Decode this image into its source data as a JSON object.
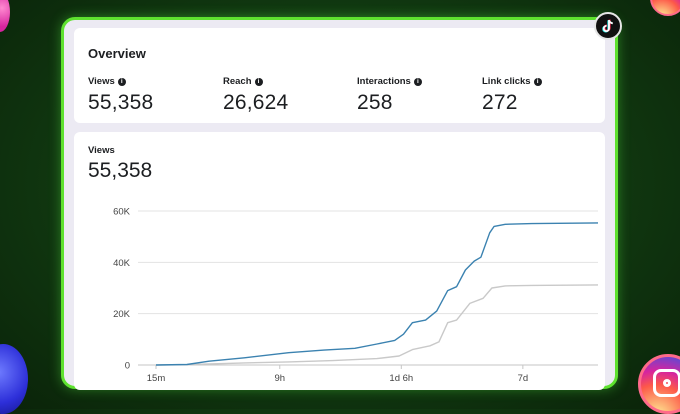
{
  "overview": {
    "title": "Overview",
    "metrics": [
      {
        "label": "Views",
        "value": "55,358"
      },
      {
        "label": "Reach",
        "value": "26,624"
      },
      {
        "label": "Interactions",
        "value": "258"
      },
      {
        "label": "Link clicks",
        "value": "272"
      }
    ]
  },
  "views_card": {
    "label": "Views",
    "value": "55,358"
  },
  "chart_data": {
    "type": "line",
    "x_tick_labels": [
      "15m",
      "9h",
      "1d 6h",
      "7d"
    ],
    "y_tick_labels": [
      "60K",
      "40K",
      "20K",
      "0"
    ],
    "ylim": [
      0,
      60000
    ],
    "grid": true,
    "series": [
      {
        "color": "#3b82b0",
        "points": [
          [
            0,
            0
          ],
          [
            0.07,
            200
          ],
          [
            0.12,
            1500
          ],
          [
            0.2,
            2800
          ],
          [
            0.3,
            4800
          ],
          [
            0.38,
            5800
          ],
          [
            0.45,
            6500
          ],
          [
            0.5,
            8200
          ],
          [
            0.54,
            9600
          ],
          [
            0.56,
            12000
          ],
          [
            0.58,
            16500
          ],
          [
            0.61,
            17500
          ],
          [
            0.635,
            21000
          ],
          [
            0.66,
            29000
          ],
          [
            0.68,
            30500
          ],
          [
            0.7,
            37000
          ],
          [
            0.72,
            40500
          ],
          [
            0.735,
            42000
          ],
          [
            0.755,
            51500
          ],
          [
            0.765,
            54000
          ],
          [
            0.79,
            54800
          ],
          [
            0.85,
            55100
          ],
          [
            1.0,
            55358
          ]
        ]
      },
      {
        "color": "#c9c9c9",
        "points": [
          [
            0,
            0
          ],
          [
            0.07,
            100
          ],
          [
            0.12,
            400
          ],
          [
            0.2,
            800
          ],
          [
            0.3,
            1200
          ],
          [
            0.4,
            1700
          ],
          [
            0.5,
            2500
          ],
          [
            0.55,
            3500
          ],
          [
            0.58,
            6000
          ],
          [
            0.62,
            7500
          ],
          [
            0.64,
            9000
          ],
          [
            0.66,
            16500
          ],
          [
            0.68,
            17500
          ],
          [
            0.71,
            24000
          ],
          [
            0.74,
            26000
          ],
          [
            0.76,
            30000
          ],
          [
            0.79,
            30800
          ],
          [
            0.85,
            31000
          ],
          [
            1.0,
            31200
          ]
        ]
      }
    ]
  },
  "colors": {
    "frame_border": "#5ee12f",
    "series_primary": "#3b82b0",
    "series_secondary": "#c9c9c9"
  },
  "icons": [
    "info-icon",
    "tiktok-icon",
    "instagram-icon"
  ]
}
